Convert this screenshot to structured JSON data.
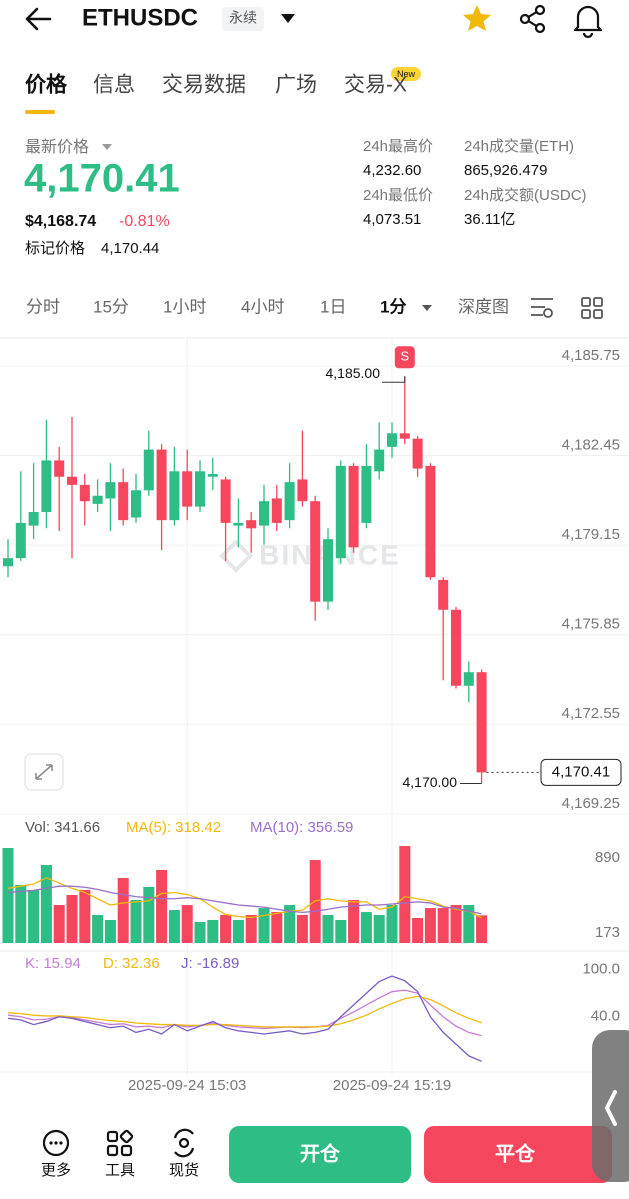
{
  "header": {
    "symbol": "ETHUSDC",
    "badge": "永续"
  },
  "tabs": [
    "价格",
    "信息",
    "交易数据",
    "广场",
    "交易-X"
  ],
  "tab_badge": "New",
  "price": {
    "label": "最新价格",
    "last": "4,170.41",
    "usd": "$4,168.74",
    "change": "-0.81%",
    "mark_label": "标记价格",
    "mark": "4,170.44"
  },
  "stats": [
    {
      "label": "24h最高价",
      "value": "4,232.60"
    },
    {
      "label": "24h成交量(ETH)",
      "value": "865,926.479"
    },
    {
      "label": "24h最低价",
      "value": "4,073.51"
    },
    {
      "label": "24h成交额(USDC)",
      "value": "36.11亿"
    }
  ],
  "intervals": [
    "分时",
    "15分",
    "1小时",
    "4小时",
    "1日",
    "1分",
    "深度图"
  ],
  "chart_data": [
    {
      "type": "candlestick",
      "watermark": "BINANCE",
      "up_color": "#2ebd85",
      "down_color": "#f6465d",
      "ylim": [
        4168.84,
        4186.41
      ],
      "yticks": [
        {
          "value": 4185.75,
          "label": "4,185.75"
        },
        {
          "value": 4182.45,
          "label": "4,182.45"
        },
        {
          "value": 4179.15,
          "label": "4,179.15"
        },
        {
          "value": 4175.85,
          "label": "4,175.85"
        },
        {
          "value": 4172.55,
          "label": "4,172.55"
        },
        {
          "value": 4169.25,
          "label": "4,169.25"
        }
      ],
      "grid": true,
      "open": [
        4178.0,
        4178.3,
        4179.5,
        4180.0,
        4181.9,
        4181.3,
        4181.0,
        4180.3,
        4180.5,
        4181.1,
        4179.8,
        4180.8,
        4182.3,
        4179.7,
        4181.5,
        4180.2,
        4181.3,
        4181.2,
        4179.5,
        4179.7,
        4179.5,
        4180.5,
        4179.7,
        4181.2,
        4180.4,
        4176.7,
        4178.3,
        4181.7,
        4179.6,
        4181.5,
        4182.4,
        4182.9,
        4182.7,
        4181.7,
        4177.5,
        4176.4,
        4173.6,
        4174.1
      ],
      "high": [
        4179.0,
        4181.5,
        4181.8,
        4183.4,
        4182.4,
        4183.5,
        4181.4,
        4181.2,
        4181.8,
        4181.6,
        4181.4,
        4183.0,
        4182.5,
        4182.4,
        4182.3,
        4181.9,
        4182.0,
        4181.3,
        4180.5,
        4180.0,
        4181.0,
        4181.0,
        4181.8,
        4183.0,
        4180.6,
        4179.4,
        4181.9,
        4181.8,
        4182.5,
        4183.3,
        4183.3,
        4185.0,
        4182.8,
        4181.8,
        4177.6,
        4176.5,
        4174.5,
        4174.2
      ],
      "low": [
        4177.6,
        4178.2,
        4179.0,
        4179.4,
        4179.3,
        4178.3,
        4179.5,
        4180.0,
        4179.3,
        4179.5,
        4179.6,
        4180.6,
        4178.6,
        4179.5,
        4179.7,
        4180.0,
        4180.8,
        4178.2,
        4178.7,
        4178.5,
        4178.8,
        4179.3,
        4179.4,
        4180.2,
        4176.0,
        4176.4,
        4178.1,
        4178.5,
        4179.4,
        4181.2,
        4182.0,
        4182.5,
        4181.3,
        4177.5,
        4173.8,
        4173.5,
        4173.0,
        4170.0
      ],
      "close": [
        4178.3,
        4179.6,
        4180.0,
        4181.9,
        4181.3,
        4181.0,
        4180.4,
        4180.6,
        4181.1,
        4179.7,
        4180.8,
        4182.3,
        4179.7,
        4181.5,
        4180.2,
        4181.5,
        4181.4,
        4179.6,
        4179.6,
        4179.4,
        4180.4,
        4179.6,
        4181.1,
        4180.4,
        4176.7,
        4179.0,
        4181.7,
        4178.7,
        4181.7,
        4182.3,
        4182.9,
        4182.7,
        4181.6,
        4177.6,
        4176.4,
        4173.6,
        4174.1,
        4170.41
      ],
      "high_label": "4,185.00",
      "low_label": "4,170.00",
      "signal": "S",
      "last_label": "4,170.41"
    },
    {
      "type": "bar",
      "label": "Vol: 341.66",
      "ylim": [
        77,
        1033
      ],
      "yticks": [
        890,
        173
      ],
      "values": [
        985,
        632,
        584,
        823,
        440,
        536,
        584,
        345,
        297,
        699,
        488,
        613,
        775,
        392,
        440,
        278,
        297,
        345,
        297,
        345,
        411,
        373,
        440,
        345,
        870,
        345,
        297,
        488,
        373,
        345,
        440,
        1004,
        316,
        411,
        411,
        440,
        440,
        341.66
      ],
      "series": [
        {
          "label": "MA(5): 318.42",
          "color": "#f0b90b",
          "values": [
            600,
            620,
            640,
            700,
            650,
            600,
            560,
            500,
            440,
            460,
            470,
            480,
            550,
            560,
            540,
            500,
            420,
            350,
            330,
            320,
            340,
            360,
            380,
            390,
            480,
            500,
            480,
            470,
            470,
            400,
            420,
            520,
            500,
            480,
            430,
            400,
            380,
            318.42
          ]
        },
        {
          "label": "MA(10): 356.59",
          "color": "#9b6fc9",
          "values": [
            560,
            570,
            580,
            600,
            620,
            620,
            610,
            590,
            560,
            540,
            520,
            510,
            500,
            500,
            510,
            500,
            480,
            460,
            440,
            430,
            420,
            400,
            380,
            370,
            380,
            400,
            420,
            430,
            440,
            440,
            450,
            460,
            470,
            460,
            420,
            410,
            380,
            356.59
          ]
        }
      ]
    },
    {
      "type": "line",
      "ylim": [
        -28,
        115
      ],
      "yticks": [
        {
          "value": 100,
          "label": "100.0"
        },
        {
          "value": 40,
          "label": "40.0"
        }
      ],
      "xticks": [
        {
          "value": 14,
          "label": "2025-09-24 15:03"
        },
        {
          "value": 30,
          "label": "2025-09-24 15:19"
        }
      ],
      "series": [
        {
          "label": "K: 15.94",
          "color": "#c77dd8",
          "values": [
            42,
            40,
            36,
            37,
            40,
            39,
            36,
            33,
            30,
            31,
            27,
            28,
            26,
            30,
            27,
            29,
            32,
            29,
            27,
            26,
            25,
            26,
            27,
            26,
            27,
            29,
            38,
            46,
            55,
            64,
            72,
            74,
            70,
            55,
            40,
            28,
            20,
            15.94
          ]
        },
        {
          "label": "D: 32.36",
          "color": "#f0b90b",
          "values": [
            45,
            44,
            42,
            41,
            41,
            40,
            39,
            37,
            35,
            34,
            32,
            31,
            30,
            30,
            29,
            29,
            30,
            30,
            29,
            28,
            27,
            27,
            27,
            27,
            27,
            28,
            31,
            36,
            42,
            50,
            57,
            63,
            66,
            62,
            54,
            45,
            38,
            32.36
          ]
        },
        {
          "label": "J: -16.89",
          "color": "#7a5cc4",
          "values": [
            38,
            36,
            30,
            34,
            40,
            38,
            34,
            30,
            26,
            28,
            20,
            24,
            18,
            30,
            22,
            28,
            34,
            26,
            22,
            20,
            18,
            20,
            22,
            18,
            20,
            24,
            40,
            55,
            70,
            85,
            92,
            86,
            72,
            40,
            20,
            5,
            -10,
            -16.89
          ]
        }
      ]
    }
  ],
  "footer": {
    "tools": [
      "更多",
      "工具",
      "现货"
    ],
    "buy": "开仓",
    "sell": "平仓"
  }
}
